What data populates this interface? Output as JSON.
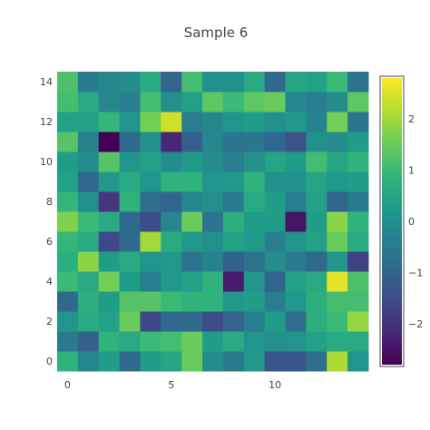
{
  "chart_data": {
    "type": "heatmap",
    "title": "Sample 6",
    "x_ticks": [
      0,
      5,
      10
    ],
    "y_ticks": [
      0,
      2,
      4,
      6,
      8,
      10,
      12,
      14
    ],
    "xlim": [
      -0.5,
      14.5
    ],
    "ylim": [
      -0.5,
      14.5
    ],
    "colorscale": "Viridis",
    "zlim": [
      -2.8,
      2.8
    ],
    "colorbar_ticks": [
      2,
      1,
      0,
      -1,
      -2
    ],
    "z": [
      [
        0.8,
        -0.2,
        0.3,
        -0.9,
        0.3,
        0.5,
        1.5,
        -0.1,
        -0.5,
        0.2,
        -1.3,
        -1.3,
        -0.8,
        2.1,
        0.1
      ],
      [
        -0.5,
        -1.1,
        0.8,
        0.6,
        1.0,
        1.1,
        1.5,
        0.3,
        0.6,
        0.1,
        0.0,
        0.1,
        0.4,
        0.6,
        0.6
      ],
      [
        0.1,
        0.6,
        0.4,
        1.5,
        -1.6,
        -0.9,
        -0.9,
        -1.5,
        -1.0,
        -0.4,
        0.3,
        -0.8,
        0.7,
        1.0,
        1.9
      ],
      [
        -0.9,
        0.7,
        0.3,
        1.3,
        1.3,
        1.0,
        0.8,
        0.8,
        0.2,
        0.3,
        -0.4,
        0.2,
        0.7,
        1.1,
        1.1
      ],
      [
        1.0,
        0.6,
        1.6,
        0.3,
        -0.4,
        0.2,
        0.4,
        0.8,
        -2.4,
        0.1,
        -1.0,
        0.4,
        0.6,
        2.6,
        1.2
      ],
      [
        0.7,
        1.8,
        0.3,
        0.6,
        0.1,
        0.2,
        -0.7,
        -0.3,
        -1.1,
        -0.7,
        -0.1,
        -0.5,
        -0.9,
        0.1,
        -1.7
      ],
      [
        0.9,
        0.6,
        -1.6,
        -0.9,
        2.0,
        0.6,
        0.2,
        0.0,
        0.4,
        0.2,
        -0.4,
        0.1,
        0.4,
        1.5,
        0.6
      ],
      [
        1.7,
        1.0,
        0.6,
        -0.9,
        -1.5,
        -0.2,
        1.5,
        -0.7,
        0.7,
        0.3,
        0.3,
        -2.5,
        0.3,
        1.8,
        0.8
      ],
      [
        0.9,
        0.0,
        -1.9,
        0.8,
        -0.8,
        -1.0,
        -0.2,
        0.0,
        -0.5,
        0.6,
        0.3,
        -0.4,
        0.4,
        -1.0,
        -0.5
      ],
      [
        0.4,
        -0.9,
        0.2,
        0.6,
        0.1,
        0.8,
        0.8,
        0.1,
        0.2,
        0.8,
        0.0,
        0.0,
        0.5,
        0.2,
        0.3
      ],
      [
        0.3,
        -0.1,
        1.3,
        0.1,
        0.4,
        -0.1,
        0.2,
        -0.1,
        -0.4,
        0.0,
        0.5,
        0.3,
        1.1,
        0.5,
        0.8
      ],
      [
        1.3,
        -0.3,
        -2.8,
        -0.9,
        0.0,
        -2.2,
        -1.1,
        -0.2,
        -0.6,
        -0.6,
        -0.9,
        -1.4,
        0.0,
        -0.1,
        0.3
      ],
      [
        0.4,
        0.4,
        0.9,
        0.1,
        1.6,
        2.4,
        -0.4,
        -0.2,
        0.1,
        0.3,
        0.0,
        0.2,
        -0.3,
        1.6,
        -0.6
      ],
      [
        1.1,
        0.6,
        -0.2,
        -0.4,
        1.1,
        0.0,
        0.4,
        1.4,
        1.0,
        1.4,
        1.5,
        -0.2,
        -0.4,
        -0.1,
        1.4
      ],
      [
        1.2,
        -0.5,
        -0.2,
        -0.1,
        0.6,
        -1.0,
        1.1,
        0.0,
        0.0,
        0.6,
        -0.9,
        0.5,
        0.4,
        1.0,
        -0.6
      ]
    ]
  }
}
